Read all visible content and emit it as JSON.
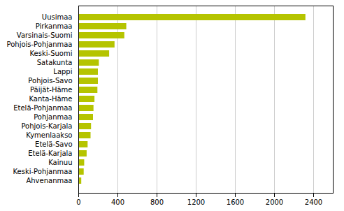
{
  "chart_data": {
    "type": "bar",
    "orientation": "horizontal",
    "categories": [
      "Uusimaa",
      "Pirkanmaa",
      "Varsinais-Suomi",
      "Pohjois-Pohjanmaa",
      "Keski-Suomi",
      "Satakunta",
      "Lappi",
      "Pohjois-Savo",
      "Päijät-Häme",
      "Kanta-Häme",
      "Etelä-Pohjanmaa",
      "Pohjanmaa",
      "Pohjois-Karjala",
      "Kymenlaakso",
      "Etelä-Savo",
      "Etelä-Karjala",
      "Kainuu",
      "Keski-Pohjanmaa",
      "Ahvenanmaa"
    ],
    "values": [
      2320,
      490,
      470,
      370,
      315,
      210,
      200,
      200,
      195,
      165,
      155,
      150,
      130,
      125,
      95,
      85,
      60,
      55,
      30
    ],
    "color": "#b5c400",
    "xlim": [
      0,
      2600
    ],
    "xticks": [
      0,
      400,
      800,
      1200,
      1600,
      2000,
      2400
    ],
    "grid": true
  }
}
